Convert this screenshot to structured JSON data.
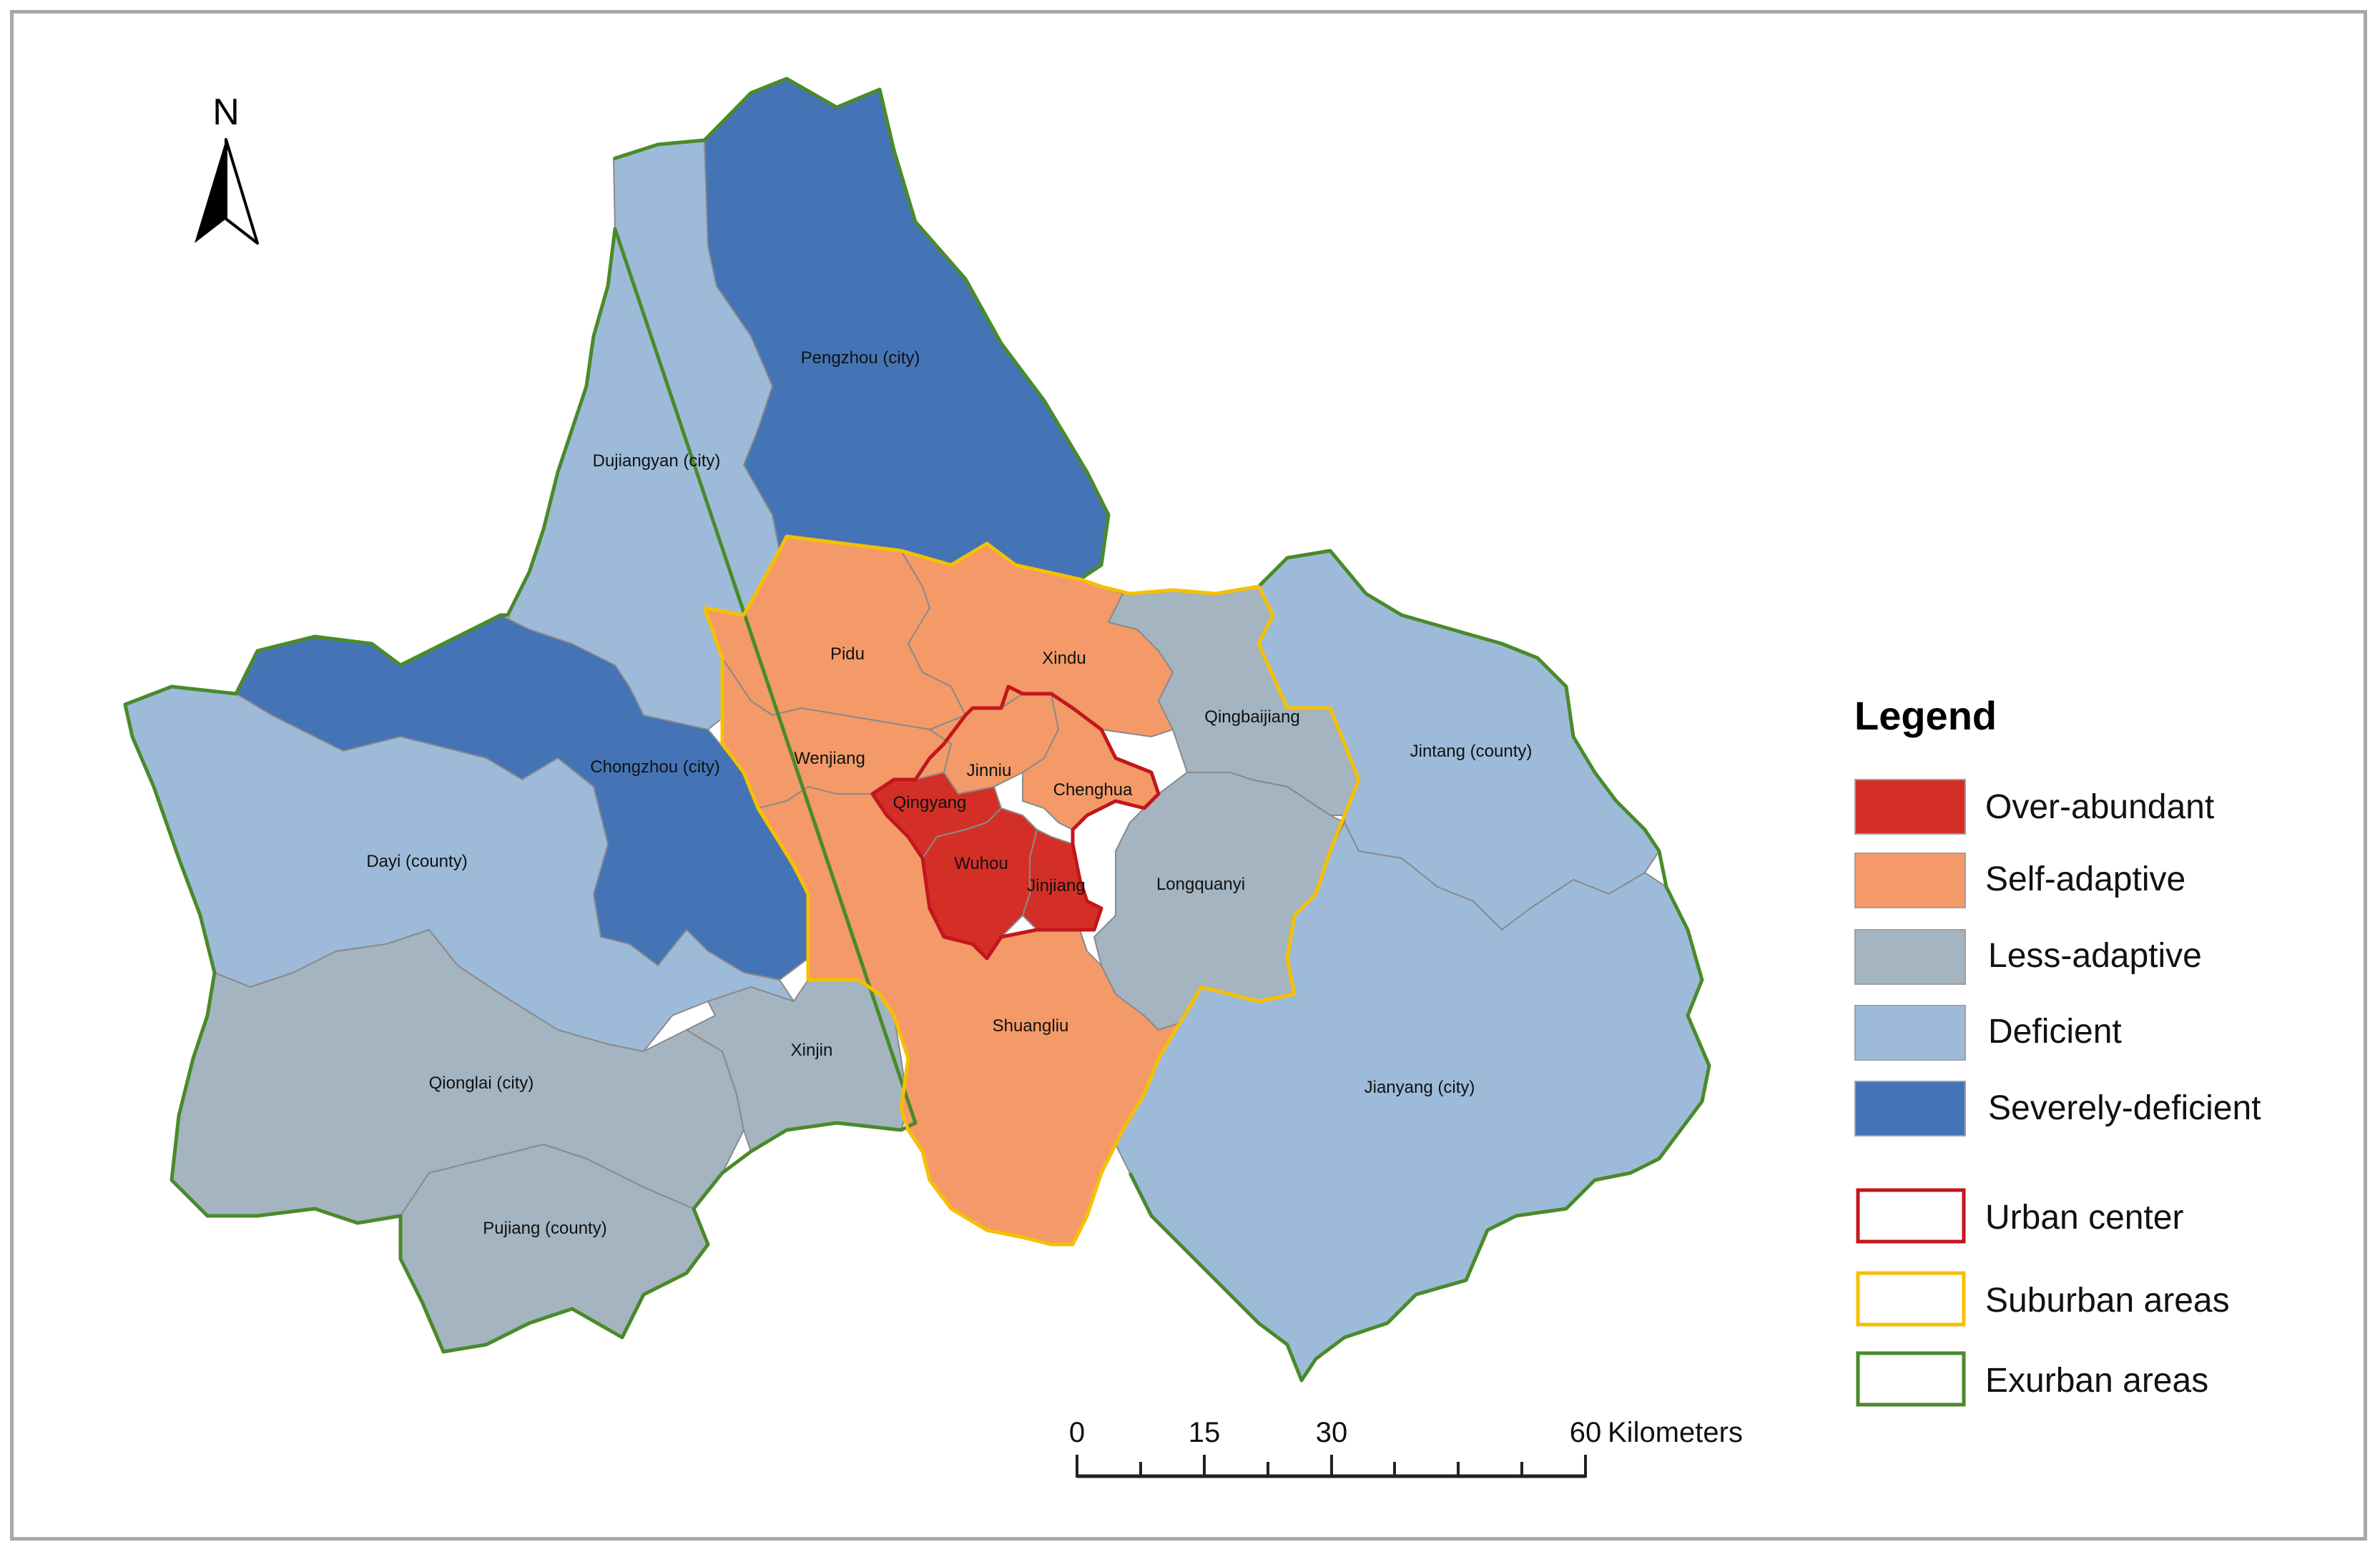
{
  "colors": {
    "over_abundant": "#d42f27",
    "self_adaptive": "#f39a68",
    "less_adaptive": "#a4b4c0",
    "deficient": "#9dbbd9",
    "severely_deficient": "#4474b6",
    "urban_center_outline": "#c3161c",
    "suburban_outline": "#f5c000",
    "exurban_outline": "#4a8a2a",
    "internal_border": "#8a8a8a"
  },
  "north_arrow": {
    "label": "N"
  },
  "regions": {
    "pengzhou": "Pengzhou (city)",
    "dujiangyan": "Dujiangyan (city)",
    "chongzhou": "Chongzhou (city)",
    "dayi": "Dayi (county)",
    "qionglai": "Qionglai (city)",
    "pujiang": "Pujiang (county)",
    "xinjin": "Xinjin",
    "pidu": "Pidu",
    "xindu": "Xindu",
    "wenjiang": "Wenjiang",
    "jinniu": "Jinniu",
    "chenghua": "Chenghua",
    "qingyang": "Qingyang",
    "wuhou": "Wuhou",
    "jinjiang": "Jinjiang",
    "shuangliu": "Shuangliu",
    "longquanyi": "Longquanyi",
    "qingbaijiang": "Qingbaijiang",
    "jintang": "Jintang (county)",
    "jianyang": "Jianyang (city)"
  },
  "legend": {
    "title": "Legend",
    "items": [
      {
        "label": "Over-abundant"
      },
      {
        "label": "Self-adaptive"
      },
      {
        "label": "Less-adaptive"
      },
      {
        "label": "Deficient"
      },
      {
        "label": "Severely-deficient"
      },
      {
        "label": "Urban center"
      },
      {
        "label": "Suburban areas"
      },
      {
        "label": "Exurban areas"
      }
    ]
  },
  "scale_bar": {
    "ticks": [
      "0",
      "15",
      "30",
      "60"
    ],
    "unit": "Kilometers"
  }
}
